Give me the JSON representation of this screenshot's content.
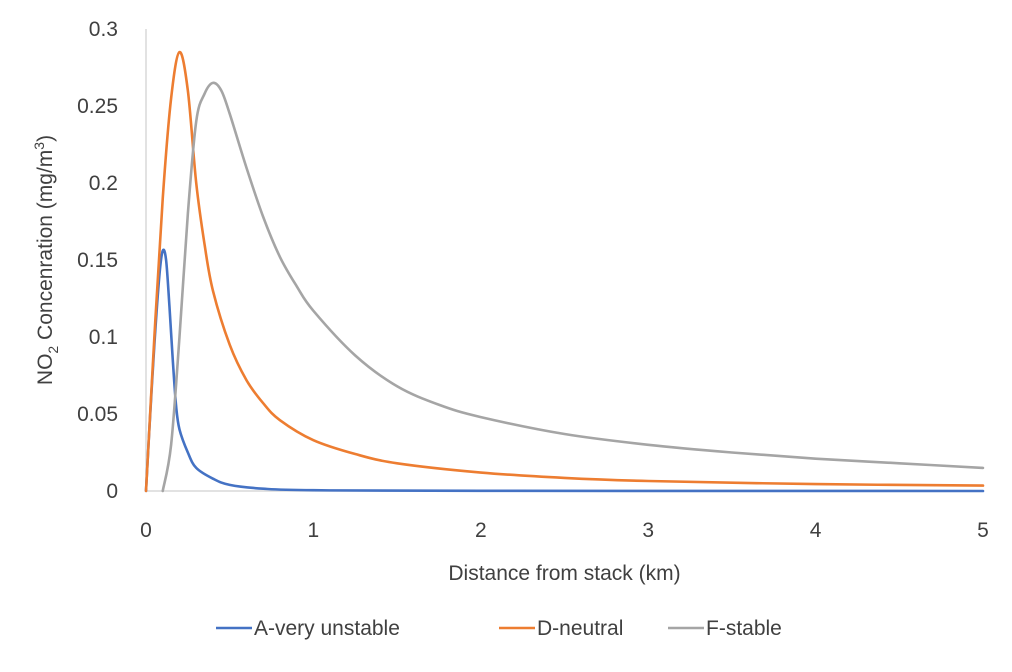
{
  "chart_data": {
    "type": "line",
    "title": "",
    "xlabel": "Distance from stack (km)",
    "ylabel": {
      "base": "NO",
      "sub": "2",
      "rest": " Concenration (mg/m",
      "sup": "3",
      "close": ")"
    },
    "xlim": [
      0,
      5
    ],
    "ylim": [
      0,
      0.3
    ],
    "xticks": [
      "0",
      "1",
      "2",
      "3",
      "4",
      "5"
    ],
    "yticks": [
      "0",
      "0.05",
      "0.1",
      "0.15",
      "0.2",
      "0.25",
      "0.3"
    ],
    "grid": false,
    "legend_position": "bottom",
    "series": [
      {
        "name": "A-very unstable",
        "color": "#4472C4",
        "points": [
          [
            0,
            0
          ],
          [
            0.02,
            0.04
          ],
          [
            0.05,
            0.095
          ],
          [
            0.08,
            0.14
          ],
          [
            0.1,
            0.156
          ],
          [
            0.12,
            0.15
          ],
          [
            0.14,
            0.12
          ],
          [
            0.16,
            0.085
          ],
          [
            0.18,
            0.055
          ],
          [
            0.2,
            0.04
          ],
          [
            0.25,
            0.025
          ],
          [
            0.3,
            0.015
          ],
          [
            0.4,
            0.008
          ],
          [
            0.5,
            0.004
          ],
          [
            0.7,
            0.0015
          ],
          [
            1,
            0.0005
          ],
          [
            2,
            0.0001
          ],
          [
            5,
            0
          ]
        ]
      },
      {
        "name": "D-neutral",
        "color": "#ED7D31",
        "points": [
          [
            0,
            0
          ],
          [
            0.05,
            0.1
          ],
          [
            0.1,
            0.19
          ],
          [
            0.15,
            0.255
          ],
          [
            0.2,
            0.285
          ],
          [
            0.25,
            0.26
          ],
          [
            0.3,
            0.2
          ],
          [
            0.35,
            0.16
          ],
          [
            0.4,
            0.13
          ],
          [
            0.5,
            0.095
          ],
          [
            0.6,
            0.072
          ],
          [
            0.7,
            0.057
          ],
          [
            0.8,
            0.046
          ],
          [
            1,
            0.033
          ],
          [
            1.25,
            0.024
          ],
          [
            1.5,
            0.018
          ],
          [
            2,
            0.012
          ],
          [
            2.5,
            0.0085
          ],
          [
            3,
            0.0065
          ],
          [
            4,
            0.0045
          ],
          [
            5,
            0.0035
          ]
        ]
      },
      {
        "name": "F-stable",
        "color": "#A5A5A5",
        "points": [
          [
            0.1,
            0
          ],
          [
            0.15,
            0.03
          ],
          [
            0.2,
            0.1
          ],
          [
            0.25,
            0.18
          ],
          [
            0.3,
            0.24
          ],
          [
            0.35,
            0.258
          ],
          [
            0.4,
            0.265
          ],
          [
            0.45,
            0.26
          ],
          [
            0.5,
            0.245
          ],
          [
            0.6,
            0.21
          ],
          [
            0.7,
            0.178
          ],
          [
            0.8,
            0.152
          ],
          [
            0.9,
            0.133
          ],
          [
            1,
            0.117
          ],
          [
            1.25,
            0.088
          ],
          [
            1.5,
            0.068
          ],
          [
            1.75,
            0.056
          ],
          [
            2,
            0.048
          ],
          [
            2.5,
            0.037
          ],
          [
            3,
            0.03
          ],
          [
            3.5,
            0.025
          ],
          [
            4,
            0.021
          ],
          [
            4.5,
            0.018
          ],
          [
            5,
            0.015
          ]
        ]
      }
    ]
  }
}
